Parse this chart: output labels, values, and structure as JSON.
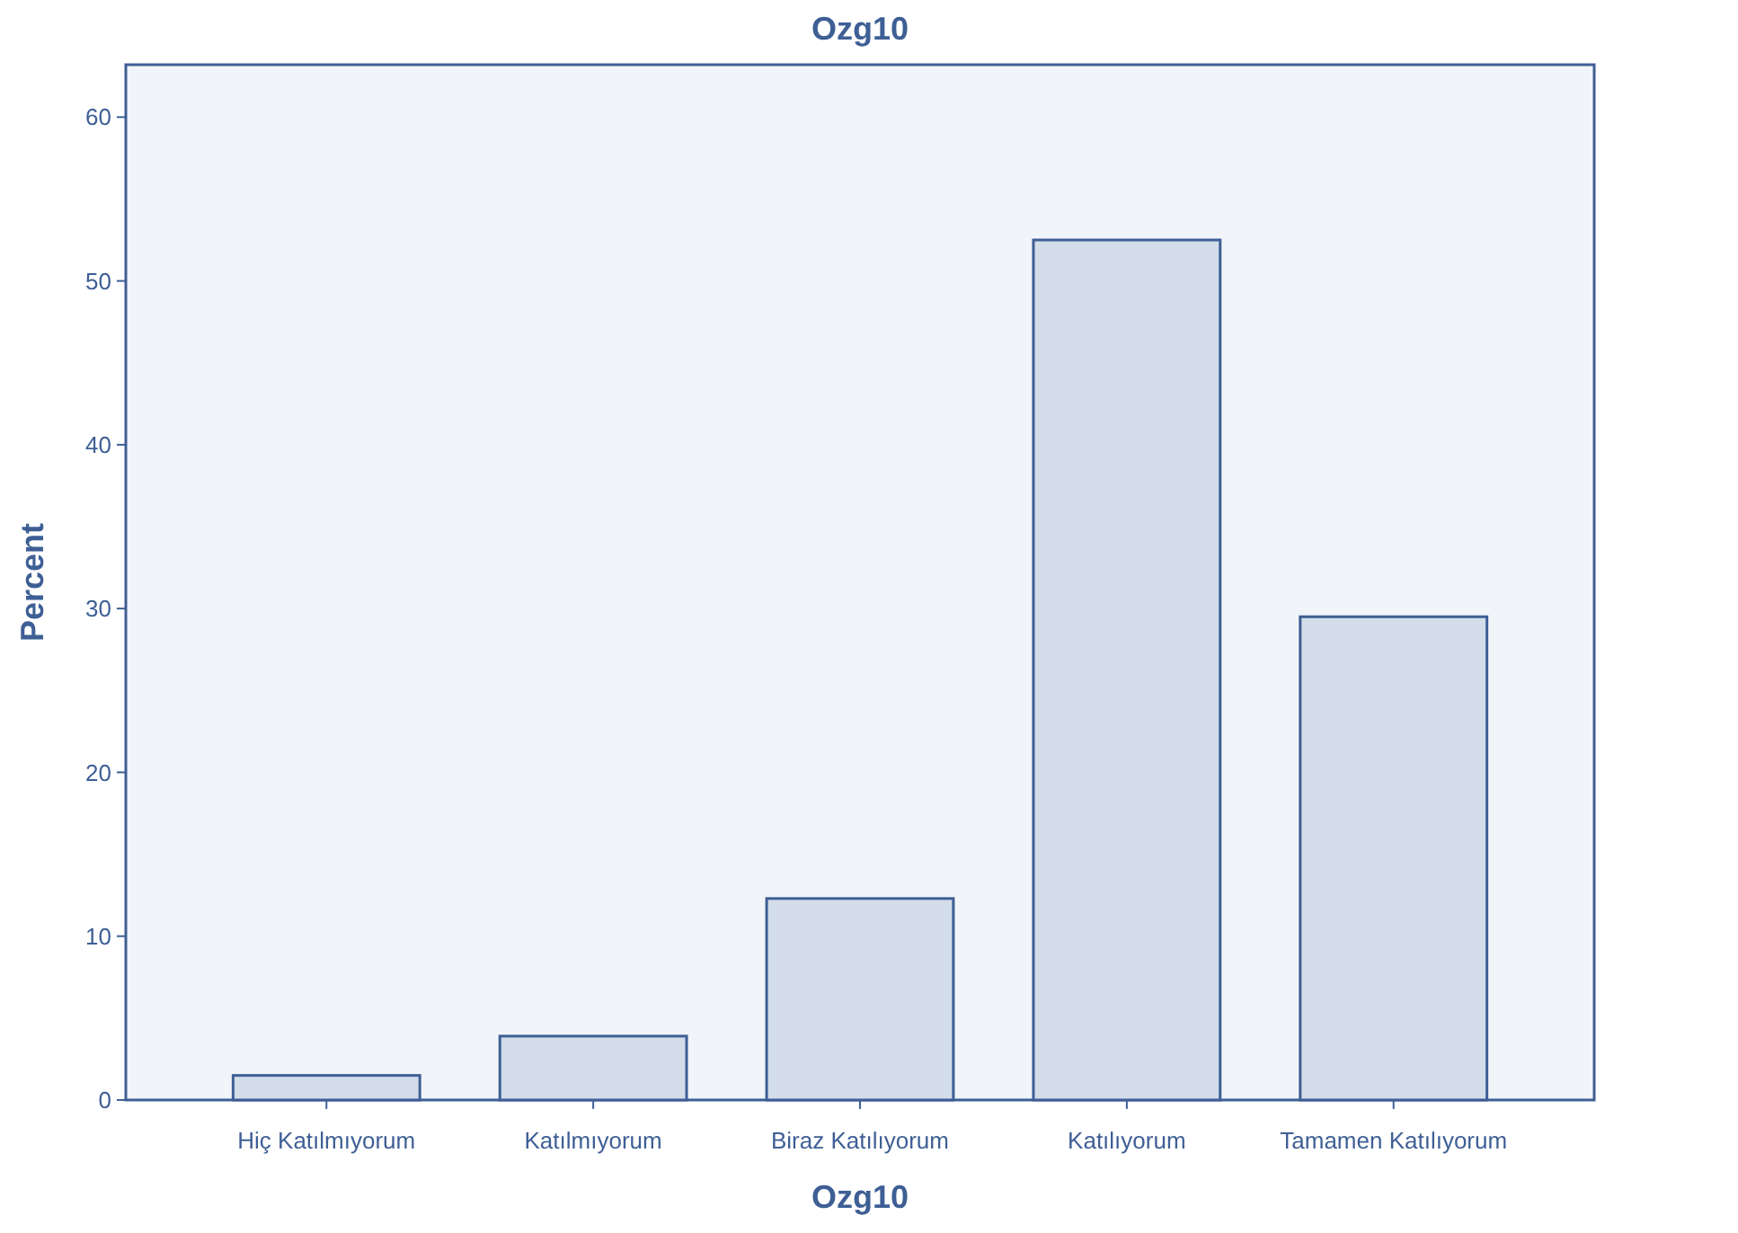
{
  "chart_data": {
    "type": "bar",
    "title": "Ozg10",
    "xlabel": "Ozg10",
    "ylabel": "Percent",
    "categories": [
      "Hiç Katılmıyorum",
      "Katılmıyorum",
      "Biraz Katılıyorum",
      "Katılıyorum",
      "Tamamen Katılıyorum"
    ],
    "values": [
      1.5,
      3.9,
      12.3,
      52.5,
      29.5
    ],
    "color": "#d3dde9",
    "ylim": [
      0,
      63.2
    ],
    "yticks": [
      0,
      10,
      20,
      30,
      40,
      50,
      60
    ],
    "grid": false
  }
}
